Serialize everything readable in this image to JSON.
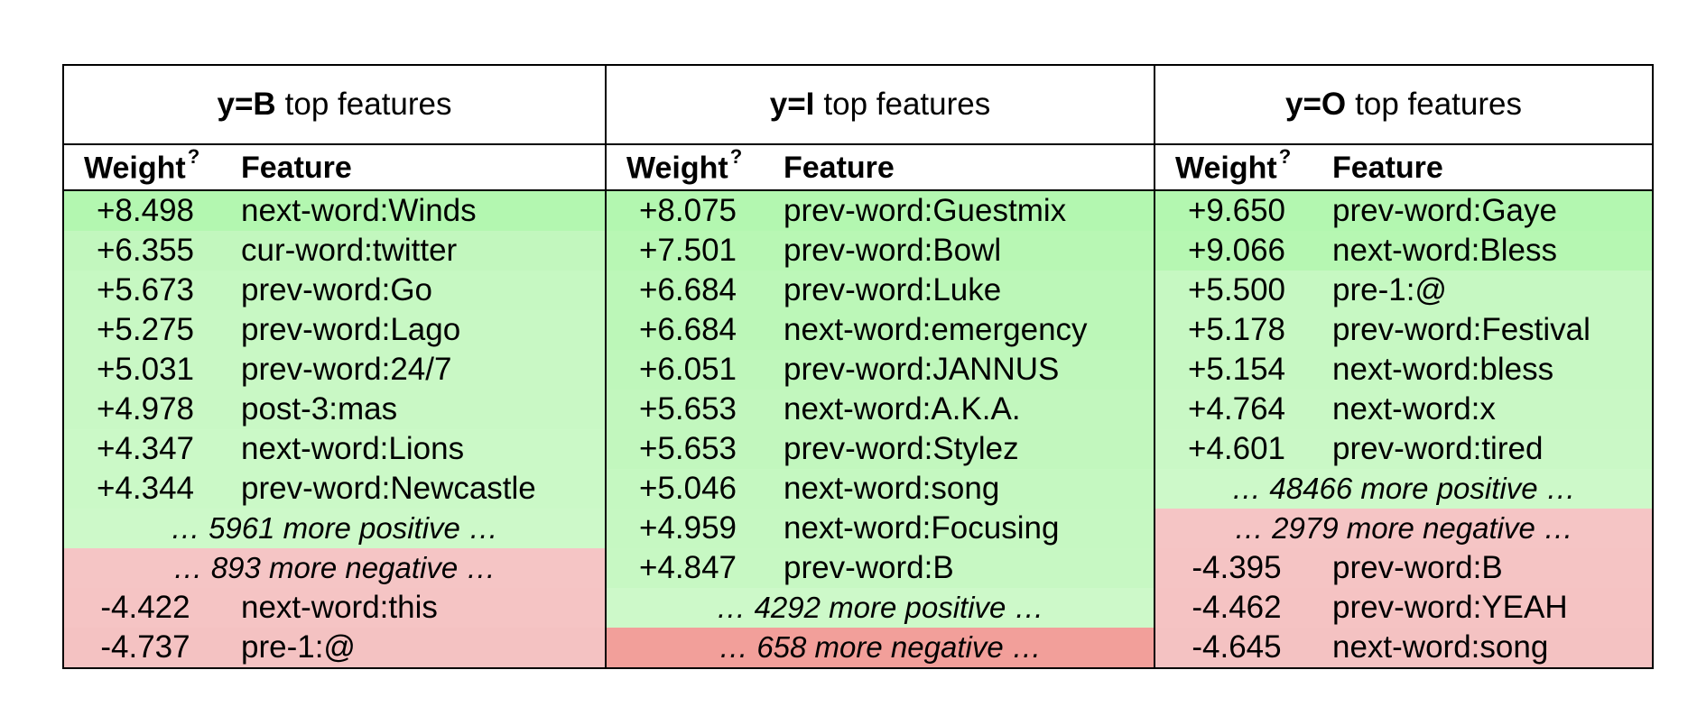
{
  "columns": {
    "weight": "Weight",
    "weight_help": "?",
    "feature": "Feature"
  },
  "colors": {
    "pos_strong": "#b3f7b0",
    "pos_medium": "#c2f7be",
    "pos_light": "#cdf9c9",
    "neg_light": "#f5c5c5",
    "neg_strong": "#f29f9a"
  },
  "panels": [
    {
      "label": "y=B",
      "title_suffix": "top features",
      "positive": [
        {
          "weight": "+8.498",
          "feature": "next-word:Winds"
        },
        {
          "weight": "+6.355",
          "feature": "cur-word:twitter"
        },
        {
          "weight": "+5.673",
          "feature": "prev-word:Go"
        },
        {
          "weight": "+5.275",
          "feature": "prev-word:Lago"
        },
        {
          "weight": "+5.031",
          "feature": "prev-word:24/7"
        },
        {
          "weight": "+4.978",
          "feature": "post-3:mas"
        },
        {
          "weight": "+4.347",
          "feature": "next-word:Lions"
        },
        {
          "weight": "+4.344",
          "feature": "prev-word:Newcastle"
        }
      ],
      "more_positive": "… 5961 more positive …",
      "more_negative": "… 893 more negative …",
      "negative": [
        {
          "weight": "-4.422",
          "feature": "next-word:this"
        },
        {
          "weight": "-4.737",
          "feature": "pre-1:@"
        }
      ]
    },
    {
      "label": "y=I",
      "title_suffix": "top features",
      "positive": [
        {
          "weight": "+8.075",
          "feature": "prev-word:Guestmix"
        },
        {
          "weight": "+7.501",
          "feature": "prev-word:Bowl"
        },
        {
          "weight": "+6.684",
          "feature": "prev-word:Luke"
        },
        {
          "weight": "+6.684",
          "feature": "next-word:emergency"
        },
        {
          "weight": "+6.051",
          "feature": "prev-word:JANNUS"
        },
        {
          "weight": "+5.653",
          "feature": "next-word:A.K.A."
        },
        {
          "weight": "+5.653",
          "feature": "prev-word:Stylez"
        },
        {
          "weight": "+5.046",
          "feature": "next-word:song"
        },
        {
          "weight": "+4.959",
          "feature": "next-word:Focusing"
        },
        {
          "weight": "+4.847",
          "feature": "prev-word:B"
        }
      ],
      "more_positive": "… 4292 more positive …",
      "more_negative": "… 658 more negative …",
      "negative": []
    },
    {
      "label": "y=O",
      "title_suffix": "top features",
      "positive": [
        {
          "weight": "+9.650",
          "feature": "prev-word:Gaye"
        },
        {
          "weight": "+9.066",
          "feature": "next-word:Bless"
        },
        {
          "weight": "+5.500",
          "feature": "pre-1:@"
        },
        {
          "weight": "+5.178",
          "feature": "prev-word:Festival"
        },
        {
          "weight": "+5.154",
          "feature": "next-word:bless"
        },
        {
          "weight": "+4.764",
          "feature": "next-word:x"
        },
        {
          "weight": "+4.601",
          "feature": "prev-word:tired"
        }
      ],
      "more_positive": "… 48466 more positive …",
      "more_negative": "… 2979 more negative …",
      "negative": [
        {
          "weight": "-4.395",
          "feature": "prev-word:B"
        },
        {
          "weight": "-4.462",
          "feature": "prev-word:YEAH"
        },
        {
          "weight": "-4.645",
          "feature": "next-word:song"
        }
      ]
    }
  ]
}
